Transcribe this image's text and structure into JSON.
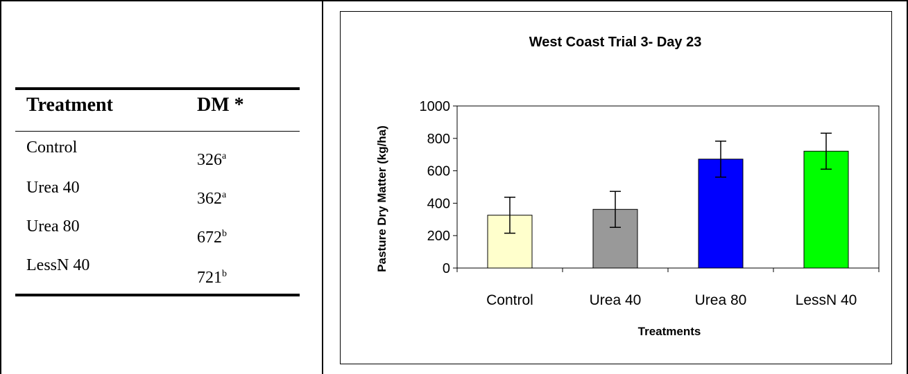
{
  "table": {
    "headers": [
      "Treatment",
      "DM *"
    ],
    "rows": [
      {
        "treatment": "Control",
        "dm": "326",
        "sup": "a"
      },
      {
        "treatment": "Urea 40",
        "dm": "362",
        "sup": "a"
      },
      {
        "treatment": "Urea 80",
        "dm": "672",
        "sup": "b"
      },
      {
        "treatment": "LessN 40",
        "dm": "721",
        "sup": "b"
      }
    ]
  },
  "chart_data": {
    "type": "bar",
    "title": "West Coast Trial 3- Day 23",
    "xlabel": "Treatments",
    "ylabel": "Pasture Dry Matter (kg/ha)",
    "ylim": [
      0,
      1000
    ],
    "yticks": [
      0,
      200,
      400,
      600,
      800,
      1000
    ],
    "grid": false,
    "categories": [
      "Control",
      "Urea 40",
      "Urea 80",
      "LessN 40"
    ],
    "values": [
      326,
      362,
      672,
      721
    ],
    "errors": [
      111,
      111,
      111,
      111
    ],
    "colors": [
      "#ffffcc",
      "#999999",
      "#0000ff",
      "#00ff00"
    ]
  }
}
